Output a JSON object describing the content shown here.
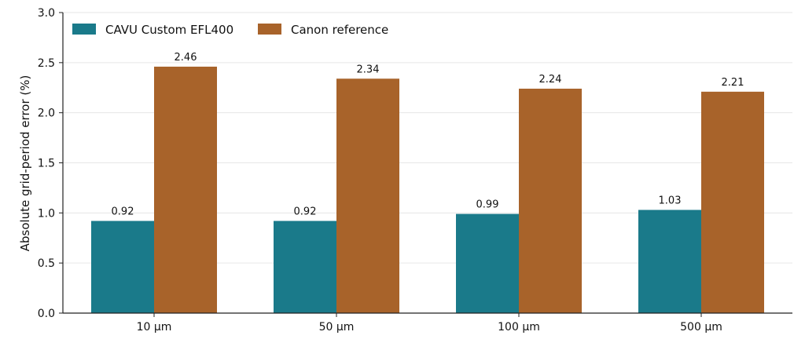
{
  "chart_data": {
    "type": "bar",
    "title": "",
    "xlabel": "",
    "ylabel": "Absolute grid-period error (%)",
    "categories": [
      "10 µm",
      "50 µm",
      "100 µm",
      "500 µm"
    ],
    "series": [
      {
        "name": "CAVU Custom EFL400",
        "color": "#1a7a8a",
        "values": [
          0.92,
          0.92,
          0.99,
          1.03
        ],
        "labels": [
          "0.92",
          "0.92",
          "0.99",
          "1.03"
        ]
      },
      {
        "name": "Canon reference",
        "color": "#a8632a",
        "values": [
          2.46,
          2.34,
          2.24,
          2.21
        ],
        "labels": [
          "2.46",
          "2.34",
          "2.24",
          "2.21"
        ]
      }
    ],
    "ylim": [
      0,
      3.0
    ],
    "yticks": [
      0.0,
      0.5,
      1.0,
      1.5,
      2.0,
      2.5,
      3.0
    ],
    "ytick_labels": [
      "0.0",
      "0.5",
      "1.0",
      "1.5",
      "2.0",
      "2.5",
      "3.0"
    ],
    "grid": "horizontal",
    "legend_position": "top-left"
  }
}
